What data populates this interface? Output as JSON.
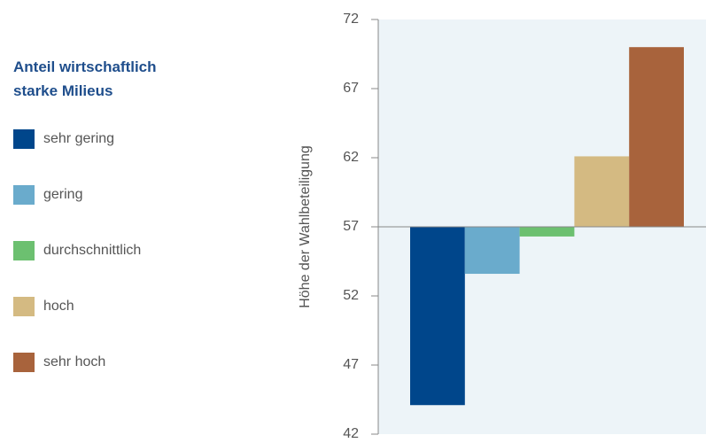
{
  "chart_data": {
    "type": "bar",
    "legend_title": "Anteil wirtschaftlich starke Milieus",
    "y_label": "Höhe der Wahlbeteiligung",
    "categories": [
      "sehr gering",
      "gering",
      "durchschnittlich",
      "hoch",
      "sehr hoch"
    ],
    "values": [
      44.1,
      53.6,
      56.3,
      62.1,
      70.0
    ],
    "colors": [
      "#00468b",
      "#6aabcc",
      "#6cc070",
      "#d4ba82",
      "#a8633c"
    ],
    "baseline": 57,
    "ylim": [
      42,
      72
    ],
    "yticks": [
      42,
      47,
      52,
      57,
      62,
      67,
      72
    ],
    "legend": "left"
  }
}
